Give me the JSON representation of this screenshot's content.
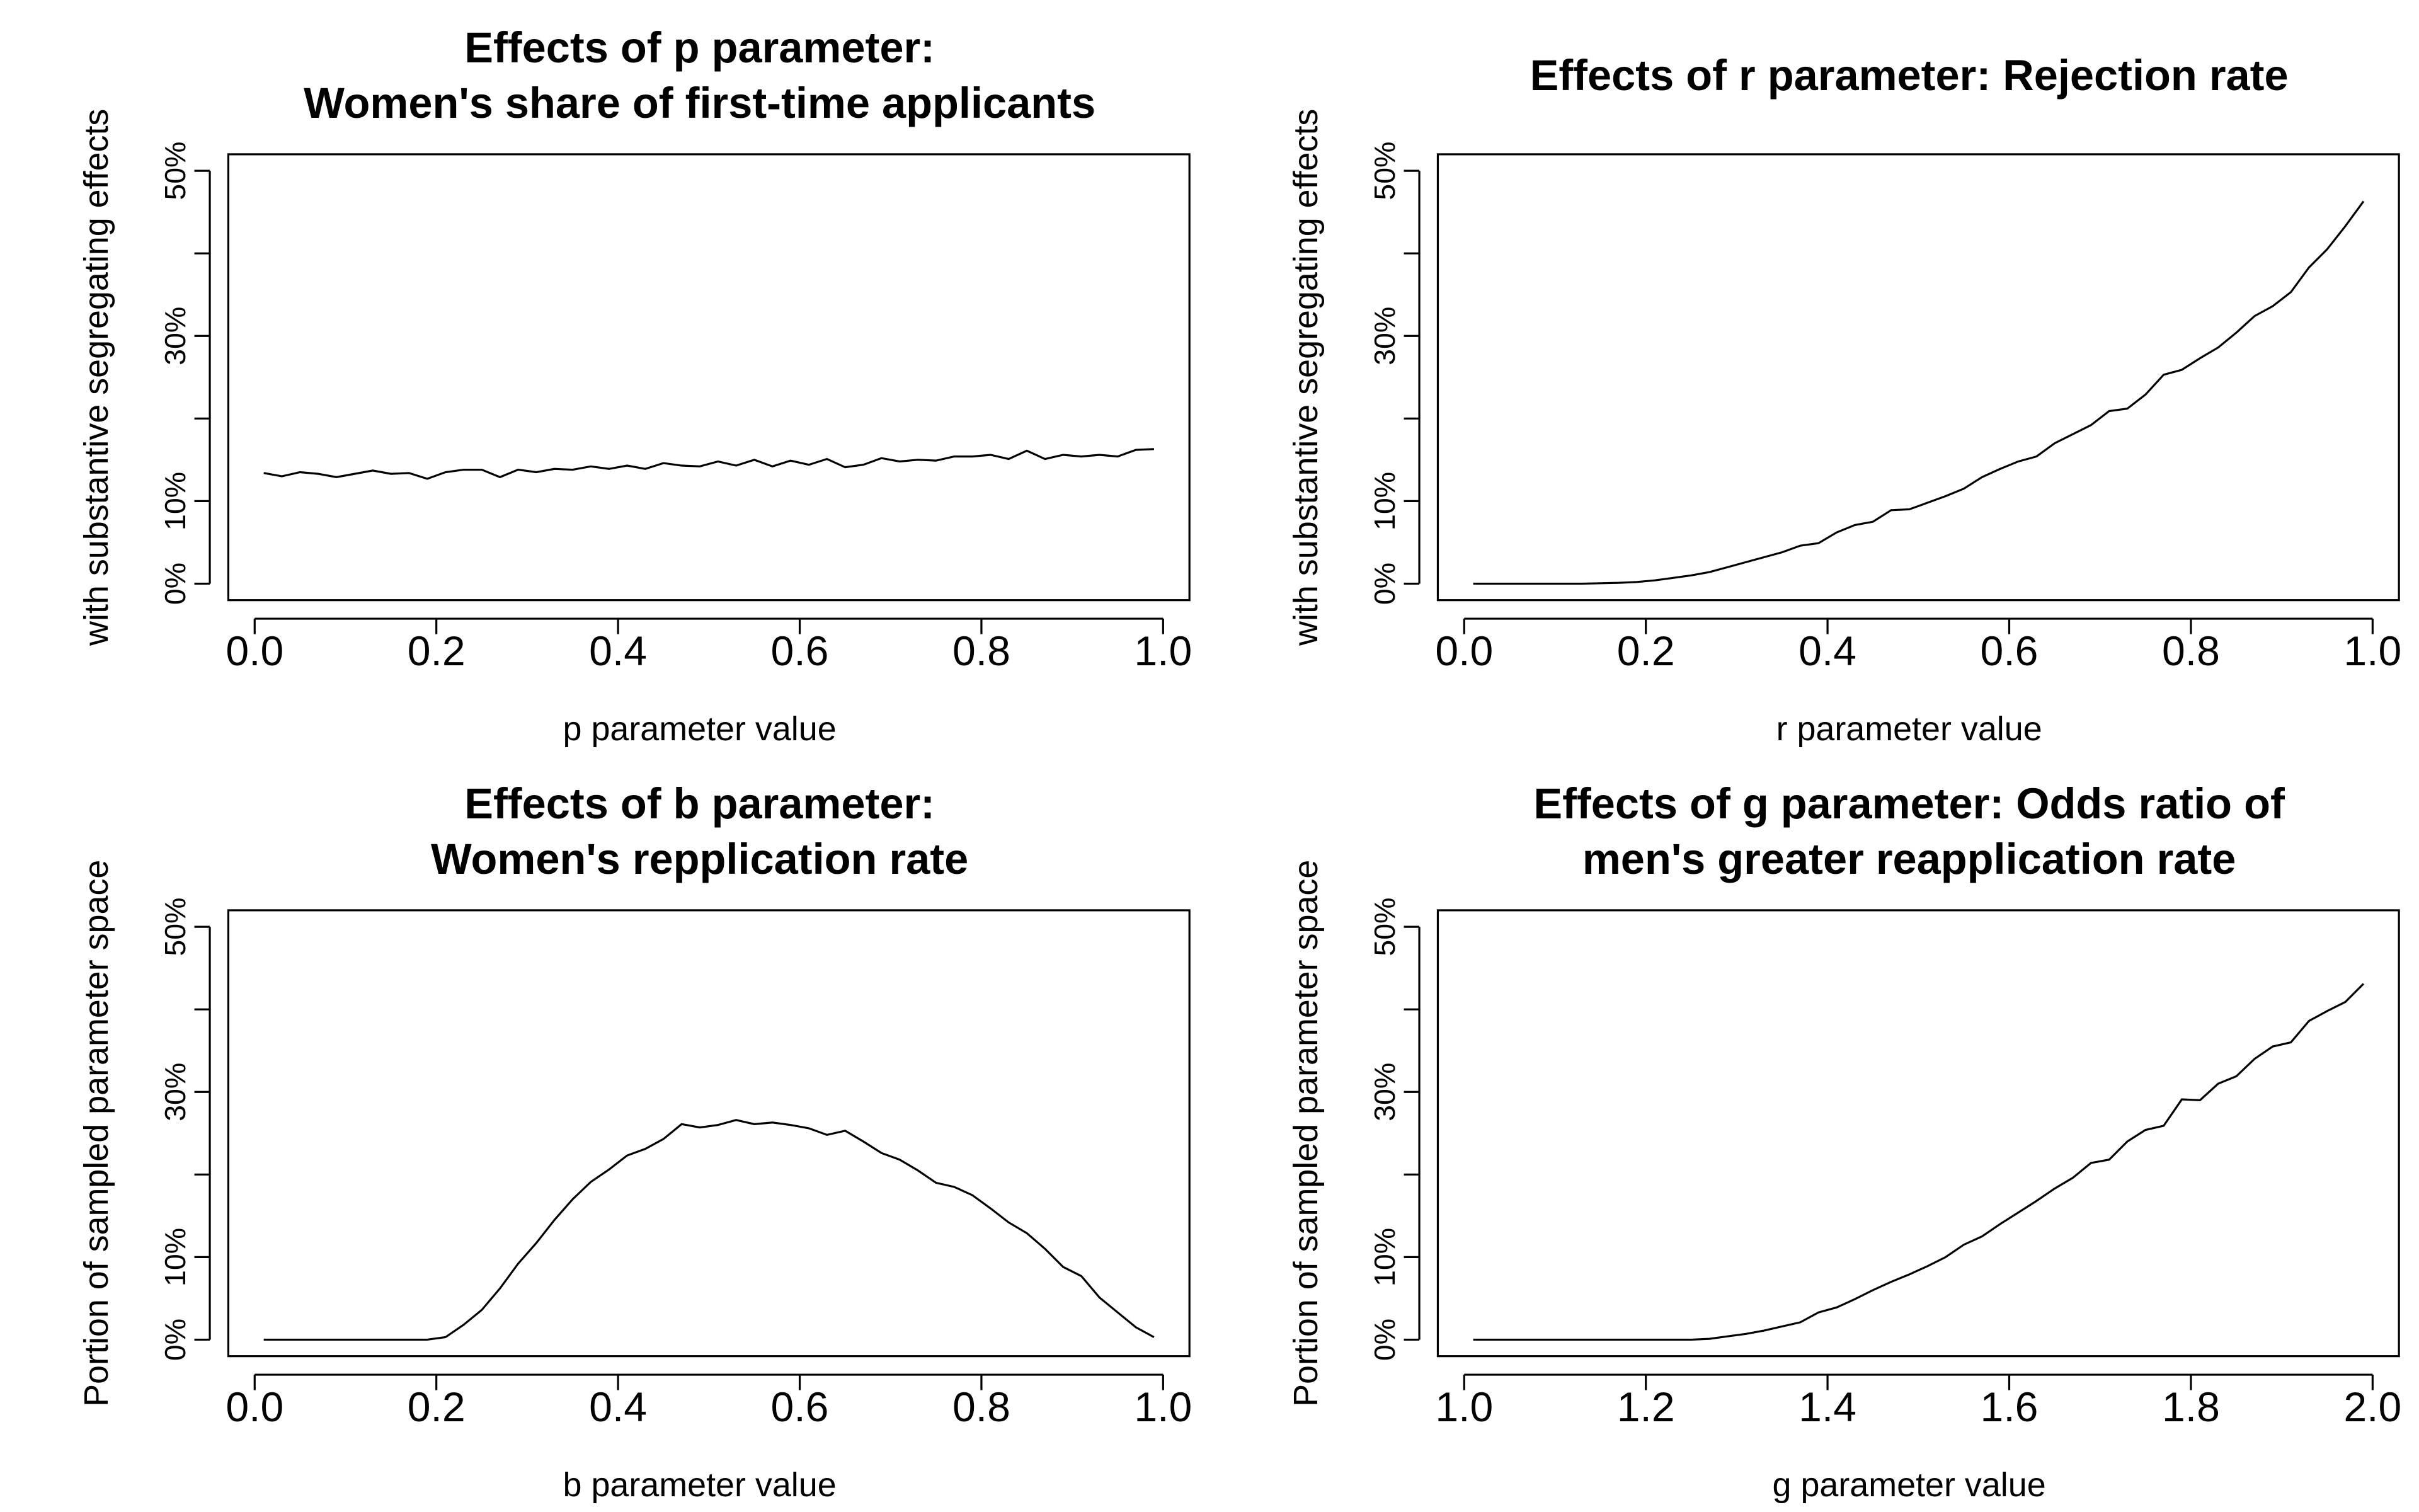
{
  "chart_data": [
    {
      "type": "line",
      "title": [
        "Effects of p parameter:",
        "Women's share of first-time applicants"
      ],
      "xlabel": "p parameter value",
      "ylabel": "with substantive segregating effects",
      "color": "#000000",
      "x": [
        0.01,
        0.03,
        0.05,
        0.07,
        0.09,
        0.11,
        0.13,
        0.15,
        0.17,
        0.19,
        0.21,
        0.23,
        0.25,
        0.27,
        0.29,
        0.31,
        0.33,
        0.35,
        0.37,
        0.39,
        0.41,
        0.43,
        0.45,
        0.47,
        0.49,
        0.51,
        0.53,
        0.55,
        0.57,
        0.59,
        0.61,
        0.63,
        0.65,
        0.67,
        0.69,
        0.71,
        0.73,
        0.75,
        0.77,
        0.79,
        0.81,
        0.83,
        0.85,
        0.87,
        0.89,
        0.91,
        0.93,
        0.95,
        0.97,
        0.99
      ],
      "values": [
        13.4,
        13.0,
        13.5,
        13.3,
        12.9,
        13.3,
        13.7,
        13.3,
        13.4,
        12.7,
        13.5,
        13.8,
        13.8,
        12.9,
        13.8,
        13.5,
        13.9,
        13.8,
        14.2,
        13.9,
        14.3,
        13.9,
        14.6,
        14.3,
        14.2,
        14.8,
        14.3,
        15.0,
        14.2,
        14.9,
        14.4,
        15.1,
        14.1,
        14.4,
        15.2,
        14.8,
        15.0,
        14.9,
        15.4,
        15.4,
        15.6,
        15.1,
        16.1,
        15.1,
        15.6,
        15.4,
        15.6,
        15.4,
        16.2,
        16.3
      ],
      "xlim": [
        -0.029,
        1.029
      ],
      "ylim": [
        -2,
        52
      ],
      "xticks": [
        {
          "value": 0,
          "label": "0.0"
        },
        0.2,
        0.4,
        0.6,
        0.8,
        {
          "value": 1,
          "label": "1.0"
        }
      ],
      "yticks": [
        {
          "value": 0,
          "label": "0%"
        },
        {
          "value": 10,
          "label": "10%"
        },
        {
          "value": 30,
          "label": "30%"
        },
        {
          "value": 50,
          "label": "50%"
        }
      ],
      "yticks_unlabeled": [
        20,
        40
      ]
    },
    {
      "type": "line",
      "title": [
        "Effects of r parameter: Rejection rate"
      ],
      "xlabel": "r parameter value",
      "ylabel": "with substantive segregating effects",
      "color": "#000000",
      "x": [
        0.01,
        0.03,
        0.05,
        0.07,
        0.09,
        0.11,
        0.13,
        0.15,
        0.17,
        0.19,
        0.21,
        0.23,
        0.25,
        0.27,
        0.29,
        0.31,
        0.33,
        0.35,
        0.37,
        0.39,
        0.41,
        0.43,
        0.45,
        0.47,
        0.49,
        0.51,
        0.53,
        0.55,
        0.57,
        0.59,
        0.61,
        0.63,
        0.65,
        0.67,
        0.69,
        0.71,
        0.73,
        0.75,
        0.77,
        0.79,
        0.81,
        0.83,
        0.85,
        0.87,
        0.89,
        0.91,
        0.93,
        0.95,
        0.97,
        0.99
      ],
      "values": [
        0,
        0,
        0,
        0,
        0,
        0,
        0,
        0.05,
        0.1,
        0.2,
        0.4,
        0.7,
        1.0,
        1.4,
        2.0,
        2.6,
        3.2,
        3.8,
        4.6,
        4.9,
        6.2,
        7.1,
        7.5,
        8.9,
        9.0,
        9.8,
        10.6,
        11.5,
        12.9,
        13.9,
        14.8,
        15.4,
        17.0,
        18.1,
        19.2,
        20.9,
        21.2,
        22.9,
        25.3,
        25.9,
        27.3,
        28.6,
        30.4,
        32.4,
        33.6,
        35.3,
        38.3,
        40.5,
        43.3,
        46.3
      ],
      "xlim": [
        -0.029,
        1.029
      ],
      "ylim": [
        -2,
        52
      ],
      "xticks": [
        {
          "value": 0,
          "label": "0.0"
        },
        0.2,
        0.4,
        0.6,
        0.8,
        {
          "value": 1,
          "label": "1.0"
        }
      ],
      "yticks": [
        {
          "value": 0,
          "label": "0%"
        },
        {
          "value": 10,
          "label": "10%"
        },
        {
          "value": 30,
          "label": "30%"
        },
        {
          "value": 50,
          "label": "50%"
        }
      ],
      "yticks_unlabeled": [
        20,
        40
      ]
    },
    {
      "type": "line",
      "title": [
        "Effects of b parameter:",
        "Women's repplication rate"
      ],
      "xlabel": "b parameter value",
      "ylabel": "Portion of sampled parameter space",
      "color": "#000000",
      "x": [
        0.01,
        0.03,
        0.05,
        0.07,
        0.09,
        0.11,
        0.13,
        0.15,
        0.17,
        0.19,
        0.21,
        0.23,
        0.25,
        0.27,
        0.29,
        0.31,
        0.33,
        0.35,
        0.37,
        0.39,
        0.41,
        0.43,
        0.45,
        0.47,
        0.49,
        0.51,
        0.53,
        0.55,
        0.57,
        0.59,
        0.61,
        0.63,
        0.65,
        0.67,
        0.69,
        0.71,
        0.73,
        0.75,
        0.77,
        0.79,
        0.81,
        0.83,
        0.85,
        0.87,
        0.89,
        0.91,
        0.93,
        0.95,
        0.97,
        0.99
      ],
      "values": [
        0,
        0,
        0,
        0,
        0,
        0,
        0,
        0,
        0,
        0,
        0.3,
        1.8,
        3.6,
        6.2,
        9.2,
        11.7,
        14.5,
        17.0,
        19.1,
        20.6,
        22.3,
        23.1,
        24.3,
        26.1,
        25.7,
        26.0,
        26.6,
        26.1,
        26.3,
        26.0,
        25.6,
        24.8,
        25.3,
        24.0,
        22.6,
        21.8,
        20.5,
        19.0,
        18.5,
        17.5,
        15.9,
        14.2,
        12.9,
        11.0,
        8.8,
        7.7,
        5.1,
        3.3,
        1.5,
        0.3
      ],
      "xlim": [
        -0.029,
        1.029
      ],
      "ylim": [
        -2,
        52
      ],
      "xticks": [
        {
          "value": 0,
          "label": "0.0"
        },
        0.2,
        0.4,
        0.6,
        0.8,
        {
          "value": 1,
          "label": "1.0"
        }
      ],
      "yticks": [
        {
          "value": 0,
          "label": "0%"
        },
        {
          "value": 10,
          "label": "10%"
        },
        {
          "value": 30,
          "label": "30%"
        },
        {
          "value": 50,
          "label": "50%"
        }
      ],
      "yticks_unlabeled": [
        20,
        40
      ]
    },
    {
      "type": "line",
      "title": [
        "Effects of g parameter: Odds ratio of",
        "men's greater reapplication rate"
      ],
      "xlabel": "g parameter value",
      "ylabel": "Portion of sampled parameter space",
      "color": "#000000",
      "x": [
        1.01,
        1.03,
        1.05,
        1.07,
        1.09,
        1.11,
        1.13,
        1.15,
        1.17,
        1.19,
        1.21,
        1.23,
        1.25,
        1.27,
        1.29,
        1.31,
        1.33,
        1.35,
        1.37,
        1.39,
        1.41,
        1.43,
        1.45,
        1.47,
        1.49,
        1.51,
        1.53,
        1.55,
        1.57,
        1.59,
        1.61,
        1.63,
        1.65,
        1.67,
        1.69,
        1.71,
        1.73,
        1.75,
        1.77,
        1.79,
        1.81,
        1.83,
        1.85,
        1.87,
        1.89,
        1.91,
        1.93,
        1.95,
        1.97,
        1.99
      ],
      "values": [
        0,
        0,
        0,
        0,
        0,
        0,
        0,
        0,
        0,
        0,
        0,
        0,
        0,
        0.1,
        0.4,
        0.7,
        1.1,
        1.6,
        2.1,
        3.3,
        3.9,
        4.9,
        6.0,
        7.0,
        7.9,
        8.9,
        10.0,
        11.5,
        12.5,
        14.0,
        15.4,
        16.8,
        18.3,
        19.6,
        21.4,
        21.8,
        24.0,
        25.4,
        25.9,
        29.1,
        29.0,
        31.0,
        31.9,
        34.0,
        35.5,
        36.0,
        38.6,
        39.8,
        40.9,
        43.1
      ],
      "xlim": [
        0.971,
        2.029
      ],
      "ylim": [
        -2,
        52
      ],
      "xticks": [
        {
          "value": 1,
          "label": "1.0"
        },
        1.2,
        1.4,
        1.6,
        1.8,
        {
          "value": 2,
          "label": "2.0"
        }
      ],
      "yticks": [
        {
          "value": 0,
          "label": "0%"
        },
        {
          "value": 10,
          "label": "10%"
        },
        {
          "value": 30,
          "label": "30%"
        },
        {
          "value": 50,
          "label": "50%"
        }
      ],
      "yticks_unlabeled": [
        20,
        40
      ]
    }
  ]
}
